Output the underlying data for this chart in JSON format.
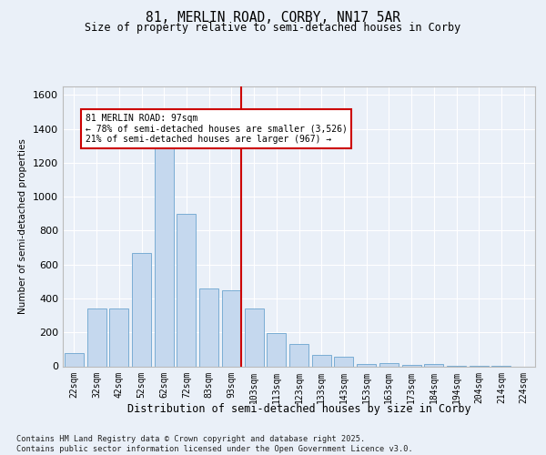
{
  "title": "81, MERLIN ROAD, CORBY, NN17 5AR",
  "subtitle": "Size of property relative to semi-detached houses in Corby",
  "xlabel": "Distribution of semi-detached houses by size in Corby",
  "ylabel": "Number of semi-detached properties",
  "bins": [
    "22sqm",
    "32sqm",
    "42sqm",
    "52sqm",
    "62sqm",
    "72sqm",
    "83sqm",
    "93sqm",
    "103sqm",
    "113sqm",
    "123sqm",
    "133sqm",
    "143sqm",
    "153sqm",
    "163sqm",
    "173sqm",
    "184sqm",
    "194sqm",
    "204sqm",
    "214sqm",
    "224sqm"
  ],
  "values": [
    80,
    340,
    340,
    670,
    1290,
    900,
    460,
    450,
    340,
    195,
    130,
    65,
    55,
    15,
    20,
    10,
    15,
    5,
    5,
    5,
    0
  ],
  "bar_color": "#c5d8ee",
  "bar_edge_color": "#7aadd4",
  "vline_pos": 7.42,
  "vline_color": "#cc0000",
  "annotation_text": "81 MERLIN ROAD: 97sqm\n← 78% of semi-detached houses are smaller (3,526)\n21% of semi-detached houses are larger (967) →",
  "annotation_box_color": "#ffffff",
  "annotation_box_edge": "#cc0000",
  "ylim": [
    0,
    1650
  ],
  "yticks": [
    0,
    200,
    400,
    600,
    800,
    1000,
    1200,
    1400,
    1600
  ],
  "footer": "Contains HM Land Registry data © Crown copyright and database right 2025.\nContains public sector information licensed under the Open Government Licence v3.0.",
  "background_color": "#eaf0f8",
  "plot_background": "#eaf0f8"
}
